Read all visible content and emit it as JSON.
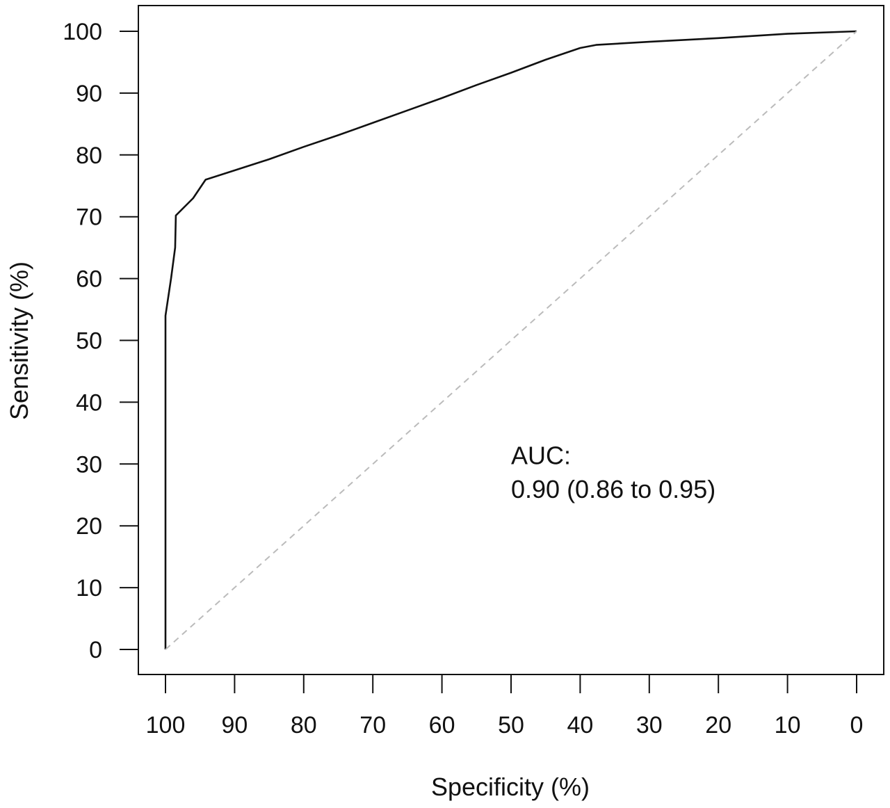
{
  "chart_data": {
    "type": "line",
    "title": "",
    "xlabel": "Specificity (%)",
    "ylabel": "Sensitivity (%)",
    "xlim": [
      100,
      0
    ],
    "ylim": [
      0,
      100
    ],
    "x_reversed": true,
    "xticks": [
      100,
      90,
      80,
      70,
      60,
      50,
      40,
      30,
      20,
      10,
      0
    ],
    "yticks": [
      0,
      10,
      20,
      30,
      40,
      50,
      60,
      70,
      80,
      90,
      100
    ],
    "grid": false,
    "legend": "none",
    "series": [
      {
        "color": "#111111",
        "style": "solid",
        "x": [
          100,
          100,
          99.2,
          98.6,
          98.5,
          96,
          94.2,
          90,
          85,
          80,
          75,
          70,
          65,
          60,
          55,
          50,
          45,
          40,
          37.7,
          30,
          20,
          10,
          0
        ],
        "y": [
          0,
          54,
          60,
          65,
          70.2,
          73,
          76,
          77.5,
          79.3,
          81.3,
          83.2,
          85.2,
          87.2,
          89.2,
          91.3,
          93.3,
          95.4,
          97.3,
          97.8,
          98.3,
          98.9,
          99.6,
          100
        ]
      },
      {
        "color": "#bbbbbb",
        "style": "dashed",
        "x": [
          100,
          0
        ],
        "y": [
          0,
          100
        ]
      }
    ],
    "annotations": [
      {
        "text": "AUC:",
        "x": 50,
        "y": 30
      },
      {
        "text": "0.90 (0.86 to 0.95)",
        "x": 50,
        "y": 24.5
      }
    ]
  }
}
